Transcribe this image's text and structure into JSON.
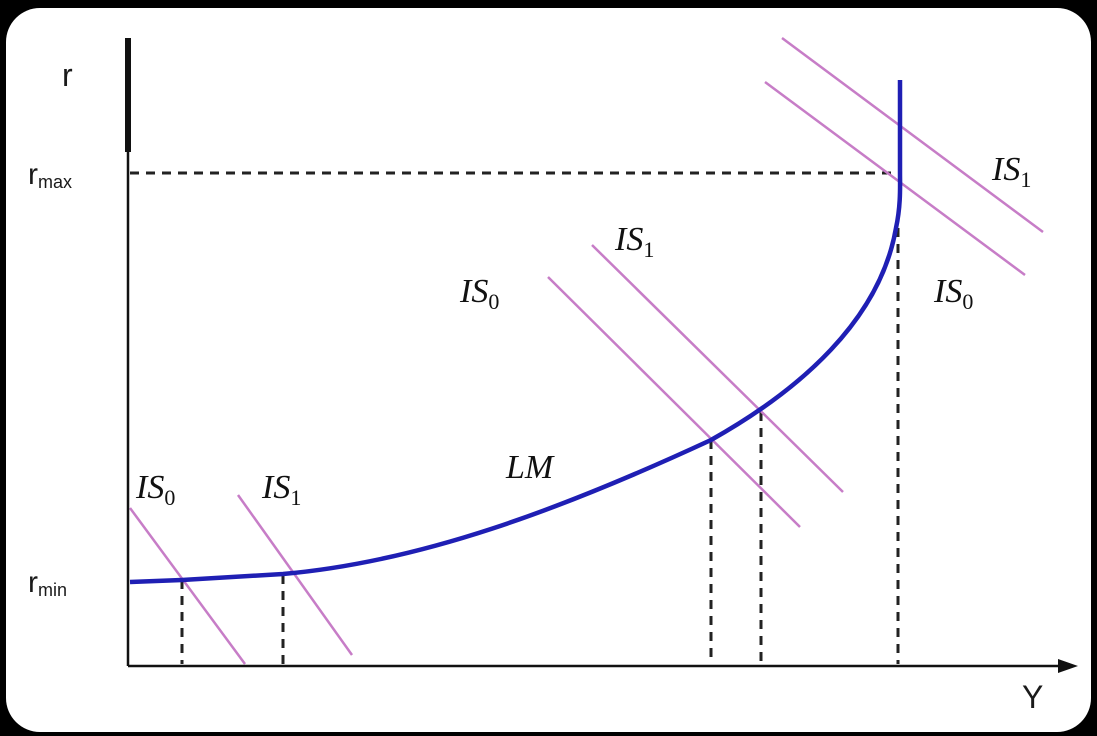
{
  "diagram": {
    "axes": {
      "y_label": "r",
      "x_label": "Y",
      "r_max_base": "r",
      "r_max_sub": "max",
      "r_min_base": "r",
      "r_min_sub": "min"
    },
    "lm_label": "LM",
    "is_labels": [
      {
        "base": "IS",
        "sub": "0"
      },
      {
        "base": "IS",
        "sub": "1"
      },
      {
        "base": "IS",
        "sub": "0"
      },
      {
        "base": "IS",
        "sub": "1"
      },
      {
        "base": "IS",
        "sub": "0"
      },
      {
        "base": "IS",
        "sub": "1"
      }
    ],
    "colors": {
      "lm_curve": "#1f1fb4",
      "is_curves": "#c77dc7",
      "axes": "#111111",
      "guides": "#222222",
      "background": "#000000",
      "card": "#ffffff"
    }
  }
}
